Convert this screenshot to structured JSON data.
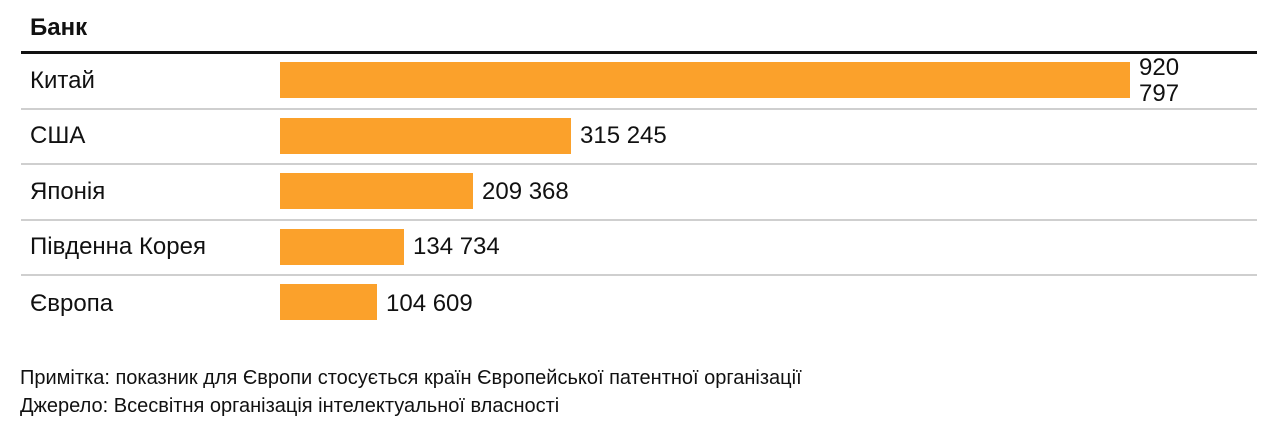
{
  "chart_data": {
    "type": "bar",
    "orientation": "horizontal",
    "title": "Банк",
    "categories": [
      "Китай",
      "США",
      "Японія",
      "Південна Корея",
      "Європа"
    ],
    "values": [
      920797,
      315245,
      209368,
      134734,
      104609
    ],
    "value_labels": [
      "920 797",
      "315 245",
      "209 368",
      "134 734",
      "104 609"
    ],
    "xlabel": "",
    "ylabel": "",
    "grid": false,
    "legend": null,
    "bar_color": "#FBA12B"
  },
  "title": "Банк",
  "rows": [
    {
      "label": "Китай",
      "value": "920 797"
    },
    {
      "label": "США",
      "value": "315 245"
    },
    {
      "label": "Японія",
      "value": "209 368"
    },
    {
      "label": "Південна Корея",
      "value": "134 734"
    },
    {
      "label": "Європа",
      "value": "104 609"
    }
  ],
  "notes": {
    "note": "Примітка: показник для Європи стосується країн Європейської патентної організації",
    "source": "Джерело: Всесвітня організація інтелектуальної власності"
  }
}
